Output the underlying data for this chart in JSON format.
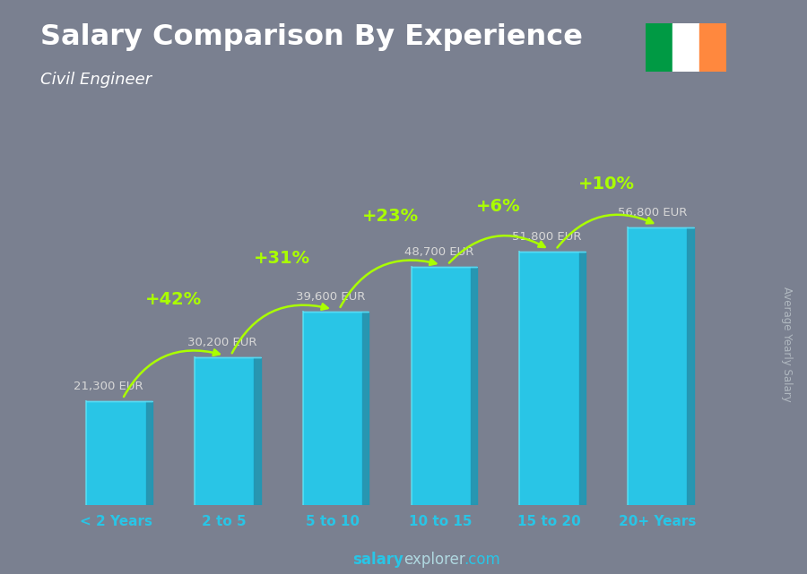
{
  "title": "Salary Comparison By Experience",
  "subtitle": "Civil Engineer",
  "categories": [
    "< 2 Years",
    "2 to 5",
    "5 to 10",
    "10 to 15",
    "15 to 20",
    "20+ Years"
  ],
  "values": [
    21300,
    30200,
    39600,
    48700,
    51800,
    56800
  ],
  "value_labels": [
    "21,300 EUR",
    "30,200 EUR",
    "39,600 EUR",
    "48,700 EUR",
    "51,800 EUR",
    "56,800 EUR"
  ],
  "pct_labels": [
    "+42%",
    "+31%",
    "+23%",
    "+6%",
    "+10%"
  ],
  "bar_color_face": "#29c5e6",
  "bar_color_left": "#1a9ab8",
  "bar_color_top": "#5dddf5",
  "bg_color": "#7a8090",
  "title_color": "#ffffff",
  "subtitle_color": "#ffffff",
  "value_color": "#d8d8d8",
  "pct_color": "#aaff00",
  "xlabel_color": "#29c5e6",
  "footer_salary_color": "#29c5e6",
  "footer_explorer_color": "#b0d8e0",
  "footer_com_color": "#29c5e6",
  "ylabel_text": "Average Yearly Salary",
  "ylabel_color": "#b0b8c0",
  "figsize": [
    9.0,
    6.41
  ],
  "ylim": [
    0,
    68000
  ],
  "ireland_flag_colors": [
    "#009A44",
    "#ffffff",
    "#FF883E"
  ]
}
